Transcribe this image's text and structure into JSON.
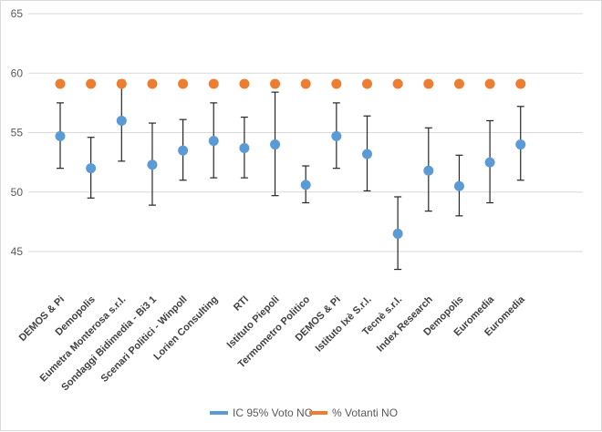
{
  "chart_data": {
    "type": "scatter",
    "title": "",
    "xlabel": "",
    "ylabel": "",
    "ylim": [
      40,
      65
    ],
    "yticks": [
      45,
      50,
      55,
      60,
      65
    ],
    "grid": true,
    "legend_position": "bottom",
    "categories": [
      "DEMOS & Pi",
      "Demopolis",
      "Eumetra Monterosa s.r.l.",
      "Sondaggi Bidimedia - Bi3 1",
      "Scenari Politici - Winpoll",
      "Lorien Consulting",
      "RTI",
      "Istituto Piepoli",
      "Termometro Politico",
      "DEMOS & Pi",
      "Istituto Ixè S.r.l.",
      "Tecnè s.r.l.",
      "Index Research",
      "Demopolis",
      "Euromedia",
      "Euromedia"
    ],
    "series": [
      {
        "name": "IC 95% Voto NO",
        "color": "#5b9bd5",
        "values": [
          54.7,
          52.0,
          56.0,
          52.3,
          53.5,
          54.3,
          53.7,
          54.0,
          50.6,
          54.7,
          53.2,
          46.5,
          51.8,
          50.5,
          52.5,
          54.0
        ],
        "lower": [
          52.0,
          49.5,
          52.6,
          48.9,
          51.0,
          51.2,
          51.2,
          49.7,
          49.1,
          52.0,
          50.1,
          43.5,
          48.4,
          48.0,
          49.1,
          51.0
        ],
        "upper": [
          57.5,
          54.6,
          59.4,
          55.8,
          56.1,
          57.5,
          56.3,
          58.4,
          52.2,
          57.5,
          56.4,
          49.6,
          55.4,
          53.1,
          56.0,
          57.2
        ]
      },
      {
        "name": "% Votanti NO",
        "color": "#ed7d31",
        "values": [
          59.1,
          59.1,
          59.1,
          59.1,
          59.1,
          59.1,
          59.1,
          59.1,
          59.1,
          59.1,
          59.1,
          59.1,
          59.1,
          59.1,
          59.1,
          59.1
        ]
      }
    ]
  }
}
